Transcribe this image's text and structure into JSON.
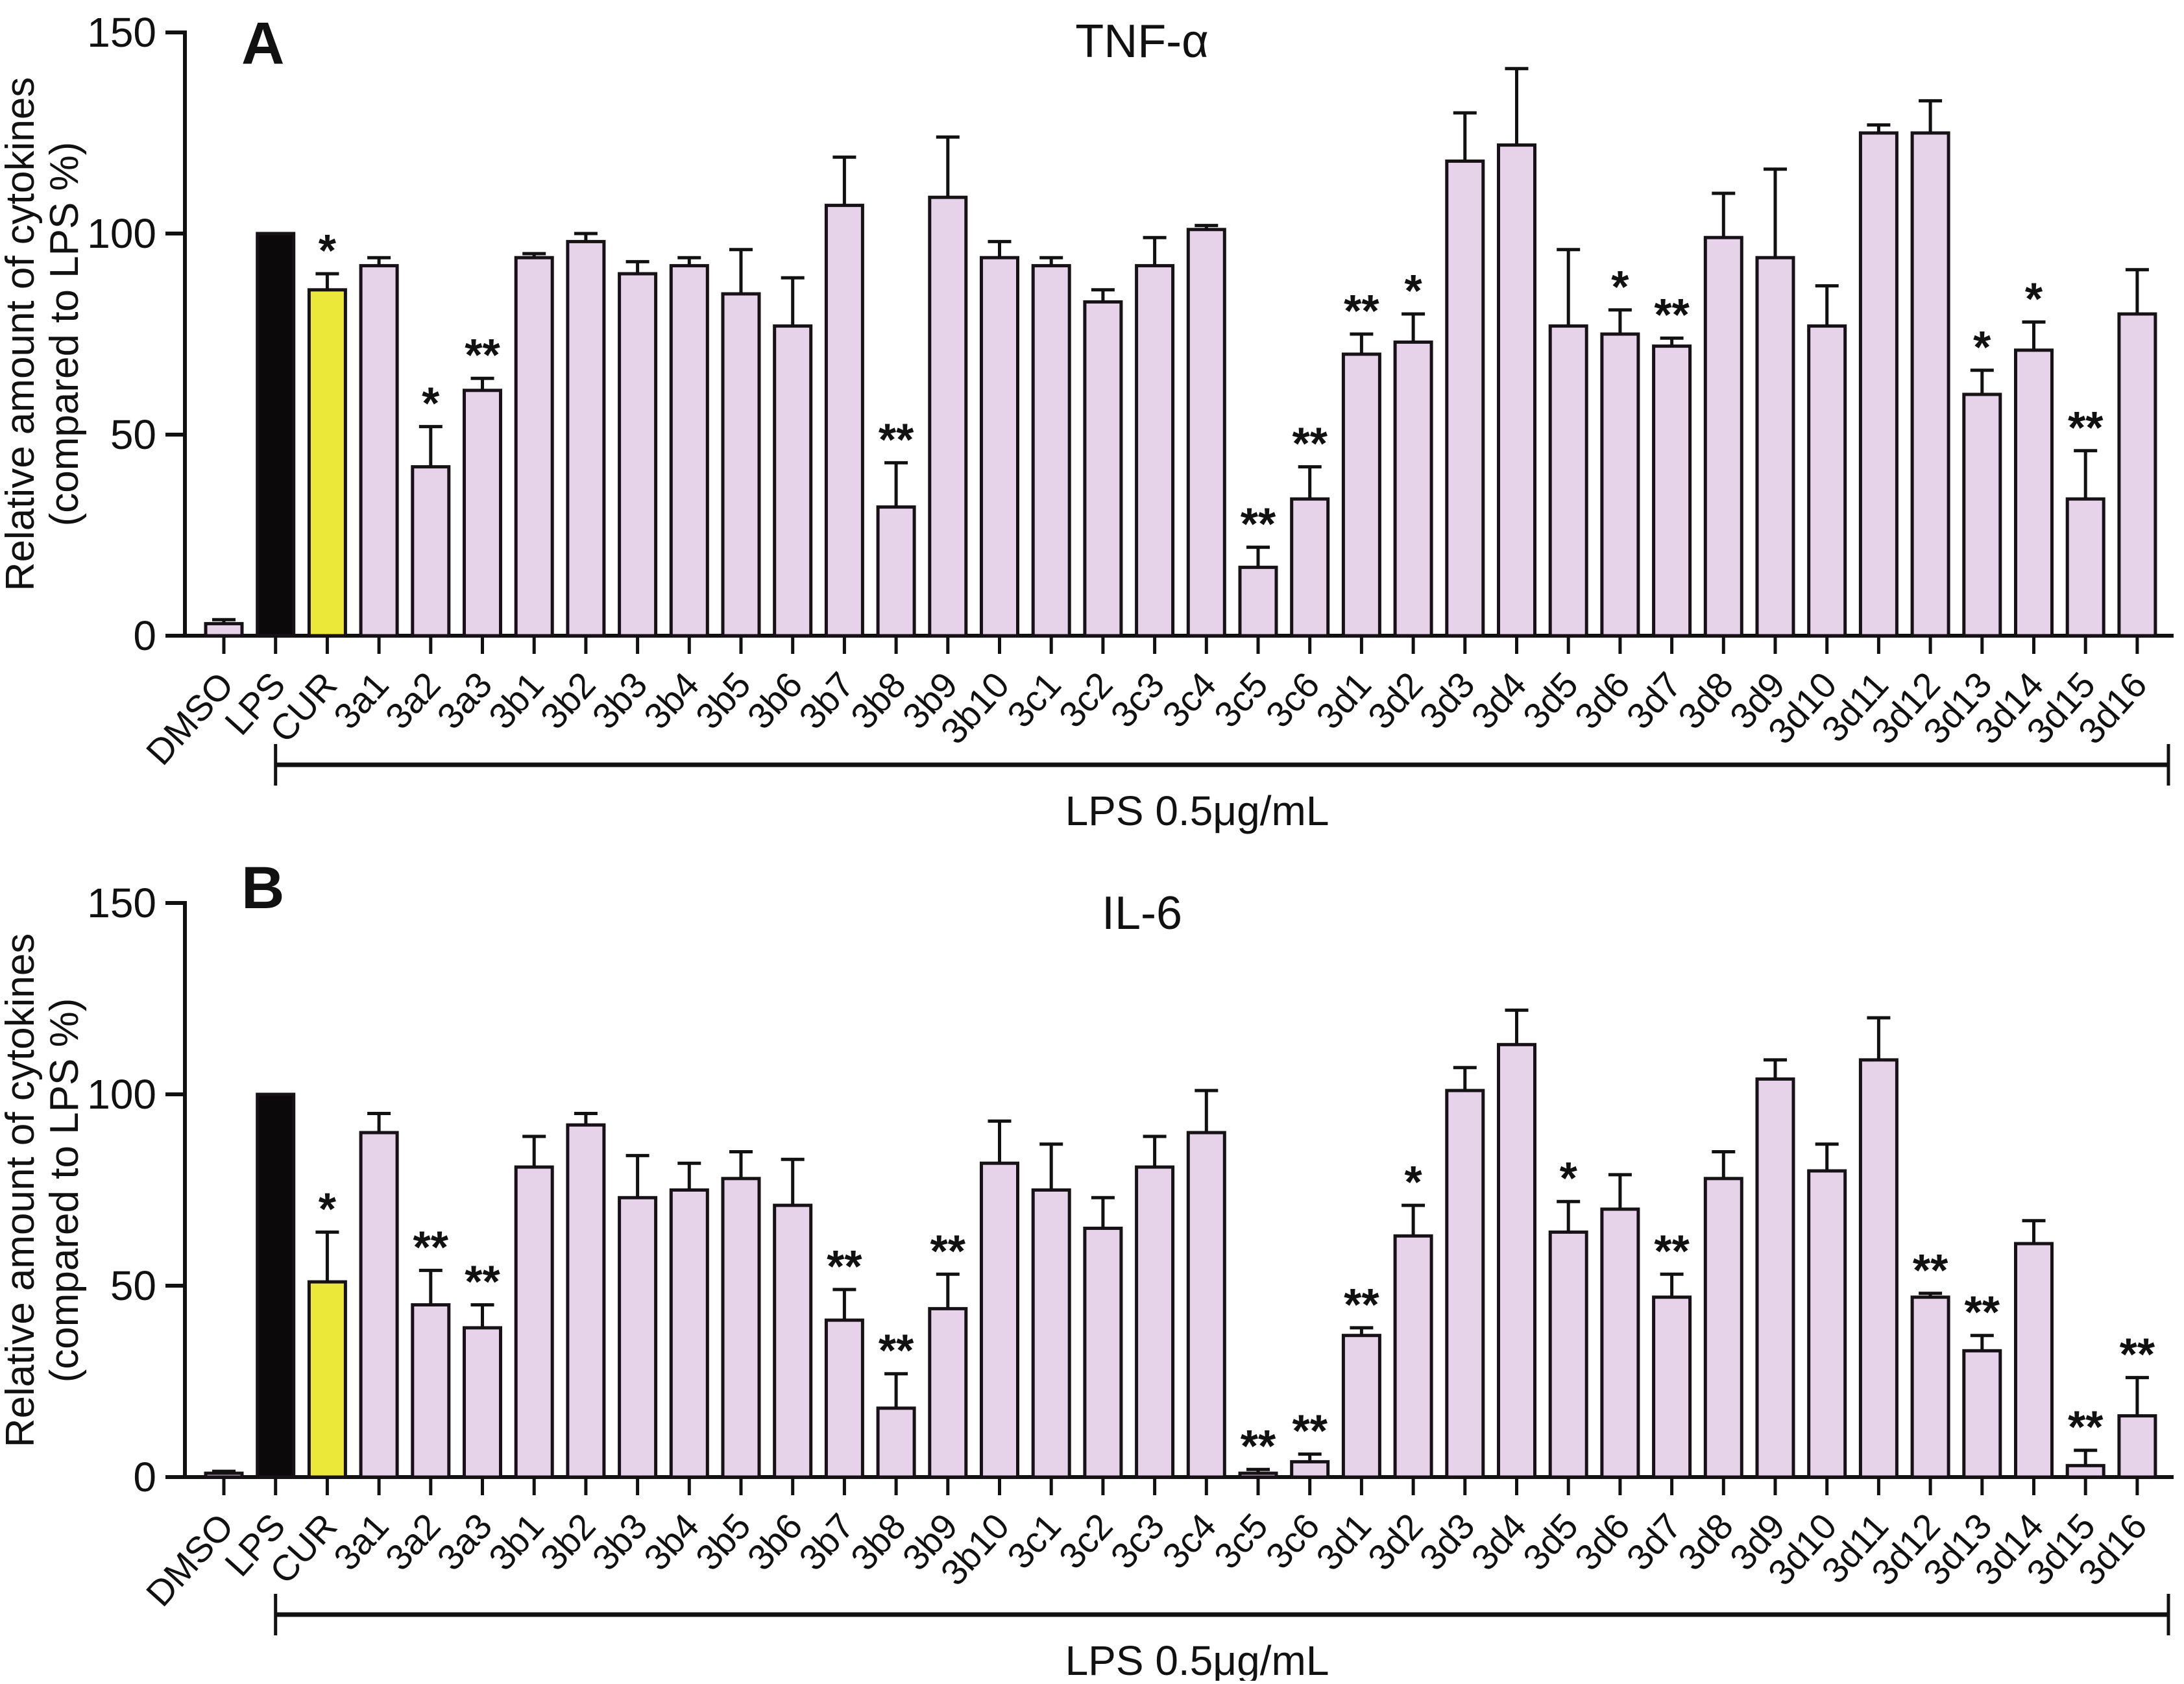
{
  "figure": {
    "y_axis_label_line1": "Relative amount of  cytokines",
    "y_axis_label_line2": "(compared to LPS %)",
    "colors": {
      "default_bar": "#e6d3e9",
      "lps_bar": "#0c090b",
      "cur_bar": "#ebe83a",
      "outline": "#161215",
      "axis": "#111111"
    }
  },
  "chart_data": [
    {
      "type": "bar",
      "panel": "A",
      "title": "TNF-α",
      "ylabel": "Relative amount of cytokines (compared to LPS %)",
      "ylim": [
        0,
        150
      ],
      "yticks": [
        0,
        50,
        100,
        150
      ],
      "grid": false,
      "legend": "none",
      "categories": [
        "DMSO",
        "LPS",
        "CUR",
        "3a1",
        "3a2",
        "3a3",
        "3b1",
        "3b2",
        "3b3",
        "3b4",
        "3b5",
        "3b6",
        "3b7",
        "3b8",
        "3b9",
        "3b10",
        "3c1",
        "3c2",
        "3c3",
        "3c4",
        "3c5",
        "3c6",
        "3d1",
        "3d2",
        "3d3",
        "3d4",
        "3d5",
        "3d6",
        "3d7",
        "3d8",
        "3d9",
        "3d10",
        "3d11",
        "3d12",
        "3d13",
        "3d14",
        "3d15",
        "3d16"
      ],
      "values": [
        3,
        100,
        86,
        92,
        42,
        61,
        94,
        98,
        90,
        92,
        85,
        77,
        107,
        32,
        109,
        94,
        92,
        83,
        92,
        101,
        17,
        34,
        70,
        73,
        118,
        122,
        77,
        75,
        72,
        99,
        94,
        77,
        125,
        125,
        60,
        71,
        34,
        80
      ],
      "errors_plus": [
        1,
        0,
        4,
        2,
        10,
        3,
        1,
        2,
        3,
        2,
        11,
        12,
        12,
        11,
        15,
        4,
        2,
        3,
        7,
        1,
        5,
        8,
        5,
        7,
        12,
        19,
        19,
        6,
        2,
        11,
        22,
        10,
        2,
        8,
        6,
        7,
        12,
        11
      ],
      "significance": [
        "",
        "",
        "*",
        "",
        "*",
        "**",
        "",
        "",
        "",
        "",
        "",
        "",
        "",
        "**",
        "",
        "",
        "",
        "",
        "",
        "",
        "**",
        "**",
        "**",
        "*",
        "",
        "",
        "",
        "*",
        "**",
        "",
        "",
        "",
        "",
        "",
        "*",
        "*",
        "**",
        ""
      ],
      "annotation_label": "LPS  0.5μg/mL",
      "annotation_range": [
        "LPS",
        "3d16"
      ]
    },
    {
      "type": "bar",
      "panel": "B",
      "title": "IL-6",
      "ylabel": "Relative amount of cytokines (compared to LPS %)",
      "ylim": [
        0,
        150
      ],
      "yticks": [
        0,
        50,
        100,
        150
      ],
      "grid": false,
      "legend": "none",
      "categories": [
        "DMSO",
        "LPS",
        "CUR",
        "3a1",
        "3a2",
        "3a3",
        "3b1",
        "3b2",
        "3b3",
        "3b4",
        "3b5",
        "3b6",
        "3b7",
        "3b8",
        "3b9",
        "3b10",
        "3c1",
        "3c2",
        "3c3",
        "3c4",
        "3c5",
        "3c6",
        "3d1",
        "3d2",
        "3d3",
        "3d4",
        "3d5",
        "3d6",
        "3d7",
        "3d8",
        "3d9",
        "3d10",
        "3d11",
        "3d12",
        "3d13",
        "3d14",
        "3d15",
        "3d16"
      ],
      "values": [
        1,
        100,
        51,
        90,
        45,
        39,
        81,
        92,
        73,
        75,
        78,
        71,
        41,
        18,
        44,
        82,
        75,
        65,
        81,
        90,
        1,
        4,
        37,
        63,
        101,
        113,
        64,
        70,
        47,
        78,
        104,
        80,
        109,
        47,
        33,
        61,
        3,
        16
      ],
      "errors_plus": [
        0.5,
        0,
        13,
        5,
        9,
        6,
        8,
        3,
        11,
        7,
        7,
        12,
        8,
        9,
        9,
        11,
        12,
        8,
        8,
        11,
        1,
        2,
        2,
        8,
        6,
        9,
        8,
        9,
        6,
        7,
        5,
        7,
        11,
        1,
        4,
        6,
        4,
        10
      ],
      "significance": [
        "",
        "",
        "*",
        "",
        "**",
        "**",
        "",
        "",
        "",
        "",
        "",
        "",
        "**",
        "**",
        "**",
        "",
        "",
        "",
        "",
        "",
        "**",
        "**",
        "**",
        "*",
        "",
        "",
        "*",
        "",
        "**",
        "",
        "",
        "",
        "",
        "**",
        "**",
        "",
        "**",
        "**"
      ],
      "annotation_label": "LPS  0.5μg/mL",
      "annotation_range": [
        "LPS",
        "3d16"
      ]
    }
  ]
}
